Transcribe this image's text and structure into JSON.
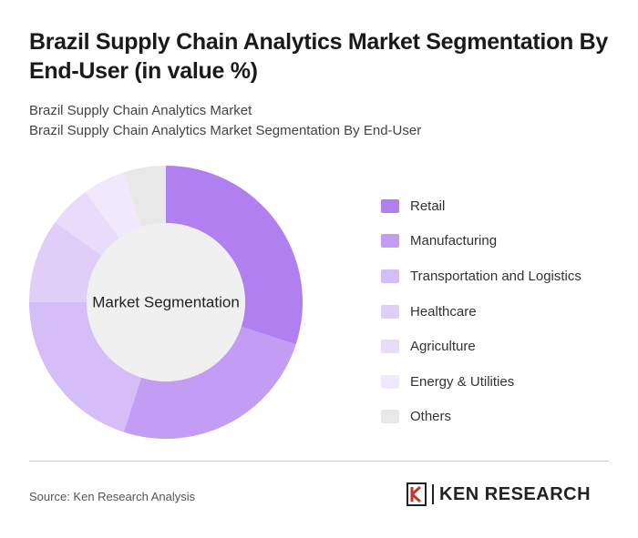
{
  "chart_data": {
    "type": "donut",
    "title": "Brazil Supply Chain Analytics Market Segmentation By End-User (in value %)",
    "subtitle_1": "Brazil Supply Chain Analytics Market",
    "subtitle_2": "Brazil Supply Chain Analytics Market Segmentation By End-User",
    "center_label": "Market Segmentation",
    "categories": [
      "Retail",
      "Manufacturing",
      "Transportation and Logistics",
      "Healthcare",
      "Agriculture",
      "Energy & Utilities",
      "Others"
    ],
    "values": [
      30,
      25,
      20,
      10,
      5,
      5,
      5
    ],
    "colors": [
      "#b07ff0",
      "#c39cf3",
      "#d5bdf7",
      "#e0cef8",
      "#e9dcfa",
      "#f0e9fb",
      "#e8e8e8"
    ],
    "source": "Source: Ken Research Analysis",
    "logo": "KEN RESEARCH"
  }
}
